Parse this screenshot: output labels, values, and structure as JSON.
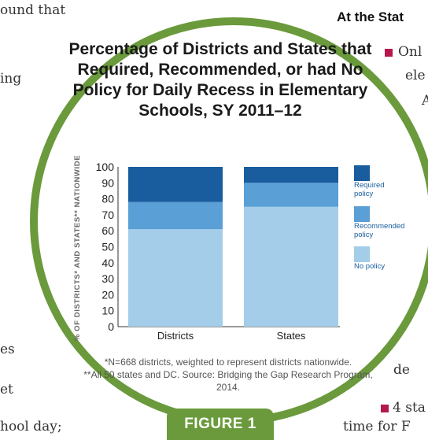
{
  "background_text": {
    "left_1": "ound that",
    "left_2": "ing",
    "left_3": "es",
    "left_4": "et",
    "left_5": "hool day;",
    "right_heading": "At the Stat",
    "right_1": "Onl",
    "right_2": "ele",
    "right_3": "A",
    "right_4": "de",
    "right_5": "4 sta",
    "right_6": "time for F"
  },
  "figure": {
    "title": "Percentage of Districts and States that Required, Recommended, or had No Policy for Daily Recess in Elementary Schools, SY 2011–12",
    "note_line1": "*N=668 districts, weighted to represent districts nationwide.",
    "note_line2": "**All 50 states and DC. Source: Bridging the Gap Research Program, 2014.",
    "label": "FIGURE 1",
    "accent_color": "#6a9a3c"
  },
  "chart_data": {
    "type": "bar",
    "stacked": true,
    "categories": [
      "Districts",
      "States"
    ],
    "series": [
      {
        "name": "No policy",
        "values": [
          61,
          75
        ],
        "color": "#a3cde8"
      },
      {
        "name": "Recommended policy",
        "values": [
          17,
          15
        ],
        "color": "#5a9fd6"
      },
      {
        "name": "Required policy",
        "values": [
          22,
          10
        ],
        "color": "#1a5d9e"
      }
    ],
    "ylabel": "% OF DISTRICTS* AND STATES** NATIONWIDE",
    "ylim": [
      0,
      100
    ],
    "yticks": [
      0,
      10,
      20,
      30,
      40,
      50,
      60,
      70,
      80,
      90,
      100
    ],
    "legend": [
      {
        "label_l1": "Required",
        "label_l2": "policy",
        "color": "#1a5d9e"
      },
      {
        "label_l1": "Recommended",
        "label_l2": "policy",
        "color": "#5a9fd6"
      },
      {
        "label_l1": "No policy",
        "label_l2": "",
        "color": "#a3cde8"
      }
    ],
    "legend_position": "right"
  }
}
